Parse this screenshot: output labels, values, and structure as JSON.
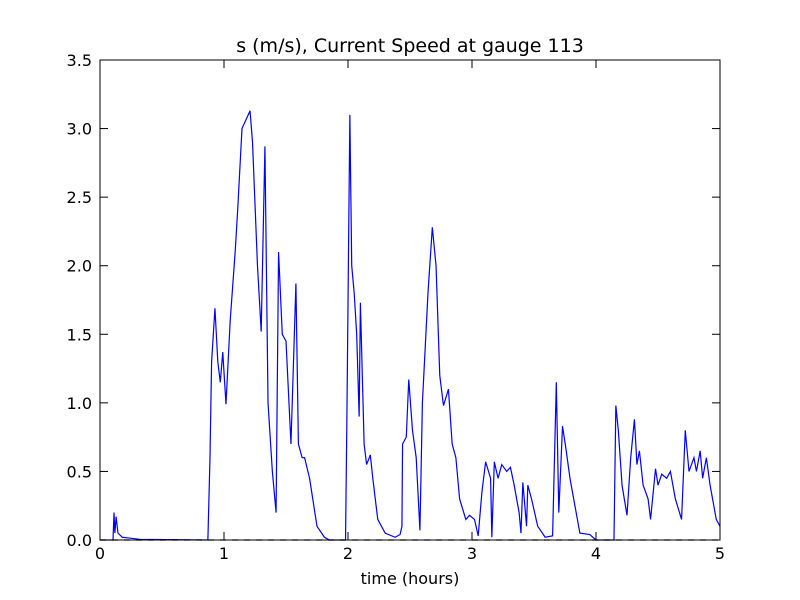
{
  "chart_data": {
    "type": "line",
    "title": "s (m/s), Current Speed at gauge 113",
    "x_label": "time (hours)",
    "xlim": [
      0,
      5
    ],
    "xticks": [
      0,
      1,
      2,
      3,
      4,
      5
    ],
    "ylim": [
      0,
      3.5
    ],
    "yticks": [
      {
        "value": 0,
        "label": "0.0"
      },
      0.5,
      {
        "value": 1,
        "label": "1.0"
      },
      1.5,
      {
        "value": 2,
        "label": "2.0"
      },
      2.5,
      {
        "value": 3,
        "label": "3.0"
      },
      3.5
    ],
    "series": [
      {
        "color": "#0000ff",
        "x": [
          0,
          0.105,
          0.113,
          0.12,
          0.13,
          0.145,
          0.18,
          0.32,
          0.87,
          0.887,
          0.9,
          0.927,
          0.95,
          0.97,
          0.99,
          1.016,
          1.05,
          1.09,
          1.11,
          1.145,
          1.18,
          1.21,
          1.23,
          1.27,
          1.3,
          1.33,
          1.355,
          1.39,
          1.42,
          1.44,
          1.47,
          1.5,
          1.54,
          1.58,
          1.6,
          1.63,
          1.65,
          1.69,
          1.75,
          1.81,
          1.85,
          1.98,
          1.99,
          2.015,
          2.03,
          2.05,
          2.07,
          2.09,
          2.1,
          2.13,
          2.15,
          2.18,
          2.2,
          2.24,
          2.3,
          2.38,
          2.42,
          2.435,
          2.44,
          2.47,
          2.49,
          2.52,
          2.55,
          2.58,
          2.6,
          2.645,
          2.68,
          2.71,
          2.74,
          2.77,
          2.81,
          2.84,
          2.87,
          2.9,
          2.95,
          2.98,
          3.02,
          3.05,
          3.08,
          3.11,
          3.15,
          3.16,
          3.18,
          3.21,
          3.24,
          3.28,
          3.31,
          3.34,
          3.38,
          3.395,
          3.41,
          3.44,
          3.45,
          3.48,
          3.53,
          3.59,
          3.65,
          3.68,
          3.7,
          3.73,
          3.76,
          3.79,
          3.82,
          3.87,
          3.95,
          4.0,
          4.145,
          4.16,
          4.18,
          4.21,
          4.25,
          4.28,
          4.31,
          4.33,
          4.35,
          4.38,
          4.42,
          4.44,
          4.48,
          4.5,
          4.53,
          4.57,
          4.6,
          4.64,
          4.69,
          4.72,
          4.75,
          4.79,
          4.81,
          4.84,
          4.86,
          4.89,
          4.92,
          4.97,
          5
        ],
        "values": [
          0,
          0,
          0.2,
          0.05,
          0.17,
          0.05,
          0.02,
          0.005,
          0,
          0.6,
          1.3,
          1.69,
          1.3,
          1.15,
          1.37,
          0.99,
          1.6,
          2.1,
          2.4,
          3.0,
          3.07,
          3.13,
          2.9,
          2.0,
          1.52,
          2.87,
          1.0,
          0.5,
          0.2,
          2.1,
          1.5,
          1.45,
          0.7,
          1.87,
          0.7,
          0.6,
          0.6,
          0.45,
          0.1,
          0.02,
          0,
          0,
          0.8,
          3.1,
          2.0,
          1.8,
          1.5,
          0.9,
          1.73,
          0.7,
          0.55,
          0.62,
          0.45,
          0.15,
          0.05,
          0.02,
          0.04,
          0.1,
          0.7,
          0.75,
          1.17,
          0.8,
          0.6,
          0.07,
          1.0,
          1.8,
          2.28,
          2.0,
          1.2,
          0.98,
          1.1,
          0.7,
          0.6,
          0.3,
          0.15,
          0.18,
          0.15,
          0.03,
          0.35,
          0.57,
          0.45,
          0.02,
          0.57,
          0.45,
          0.55,
          0.5,
          0.53,
          0.4,
          0.2,
          0.05,
          0.42,
          0.1,
          0.4,
          0.3,
          0.1,
          0.02,
          0.03,
          1.15,
          0.2,
          0.83,
          0.65,
          0.45,
          0.3,
          0.05,
          0.04,
          0,
          0,
          0.98,
          0.8,
          0.4,
          0.18,
          0.6,
          0.88,
          0.55,
          0.65,
          0.4,
          0.3,
          0.15,
          0.52,
          0.4,
          0.48,
          0.45,
          0.5,
          0.3,
          0.15,
          0.8,
          0.5,
          0.6,
          0.5,
          0.65,
          0.45,
          0.6,
          0.4,
          0.15,
          0.1
        ]
      },
      {
        "color": "#000000",
        "dashed": true,
        "x": [
          0,
          5
        ],
        "values": [
          0,
          0
        ]
      }
    ]
  }
}
